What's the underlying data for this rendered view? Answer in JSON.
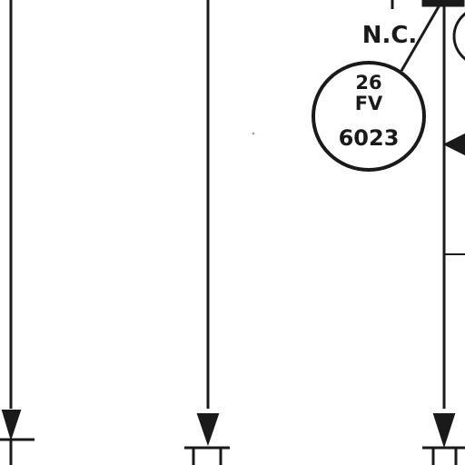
{
  "instrument": {
    "line1": "26",
    "line2": "FV",
    "tag": "6023"
  },
  "valve_position_label": "N.C.",
  "colors": {
    "background": "#ffffff",
    "ink": "#1a1a1a"
  }
}
